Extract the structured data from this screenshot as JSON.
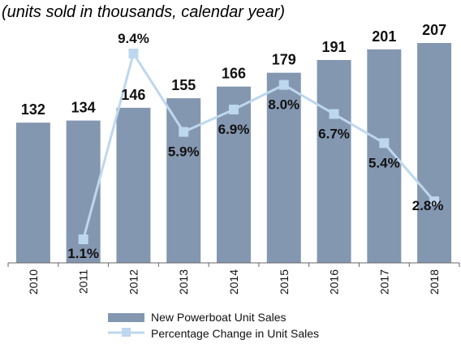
{
  "chart_data": {
    "type": "bar",
    "subtitle": "(units sold in thousands, calendar year)",
    "categories": [
      "2010",
      "2011",
      "2012",
      "2013",
      "2014",
      "2015",
      "2016",
      "2017",
      "2018"
    ],
    "series": [
      {
        "name": "New Powerboat Unit Sales",
        "type": "bar",
        "values": [
          132,
          134,
          146,
          155,
          166,
          179,
          191,
          201,
          207
        ],
        "labels": [
          "132",
          "134",
          "146",
          "155",
          "166",
          "179",
          "191",
          "201",
          "207"
        ],
        "color": "#8497B0"
      },
      {
        "name": "Percentage Change in Unit Sales",
        "type": "line",
        "values": [
          null,
          1.1,
          9.4,
          5.9,
          6.9,
          8.0,
          6.7,
          5.4,
          2.8
        ],
        "labels": [
          "",
          "1.1%",
          "9.4%",
          "5.9%",
          "6.9%",
          "8.0%",
          "6.7%",
          "5.4%",
          "2.8%"
        ],
        "color": "#BDD7EE"
      }
    ],
    "legend_position": "bottom",
    "grid": false
  }
}
